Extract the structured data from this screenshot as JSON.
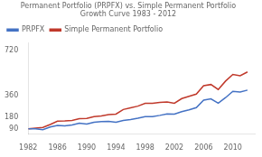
{
  "chart_data": {
    "type": "line",
    "title": "Permanent Portfolio (PRPFX) vs. Simple Permanent Portfolio\nGrowth Curve 1983 - 2012",
    "x": [
      1982,
      1983,
      1984,
      1985,
      1986,
      1987,
      1988,
      1989,
      1990,
      1991,
      1992,
      1993,
      1994,
      1995,
      1996,
      1997,
      1998,
      1999,
      2000,
      2001,
      2002,
      2003,
      2004,
      2005,
      2006,
      2007,
      2008,
      2009,
      2010,
      2011,
      2012
    ],
    "series": [
      {
        "name": "PRPFX",
        "color": "#4472c4",
        "values": [
          90,
          90,
          83,
          105,
          118,
          115,
          122,
          135,
          128,
          143,
          148,
          150,
          143,
          158,
          165,
          175,
          188,
          188,
          198,
          210,
          208,
          228,
          242,
          260,
          320,
          330,
          295,
          340,
          390,
          385,
          400
        ]
      },
      {
        "name": "Simple Permanent Portfolio",
        "color": "#c0392b",
        "values": [
          90,
          97,
          102,
          125,
          152,
          153,
          158,
          172,
          173,
          188,
          193,
          204,
          208,
          245,
          258,
          272,
          295,
          295,
          302,
          306,
          295,
          332,
          350,
          368,
          435,
          445,
          405,
          472,
          525,
          515,
          545
        ]
      }
    ],
    "xlim": [
      1982,
      2013
    ],
    "ylim": [
      50,
      780
    ],
    "xticks": [
      1982,
      1986,
      1990,
      1994,
      1998,
      2002,
      2006,
      2010
    ],
    "yticks": [
      90,
      180,
      360,
      720
    ],
    "grid": false,
    "legend": "upper left"
  }
}
